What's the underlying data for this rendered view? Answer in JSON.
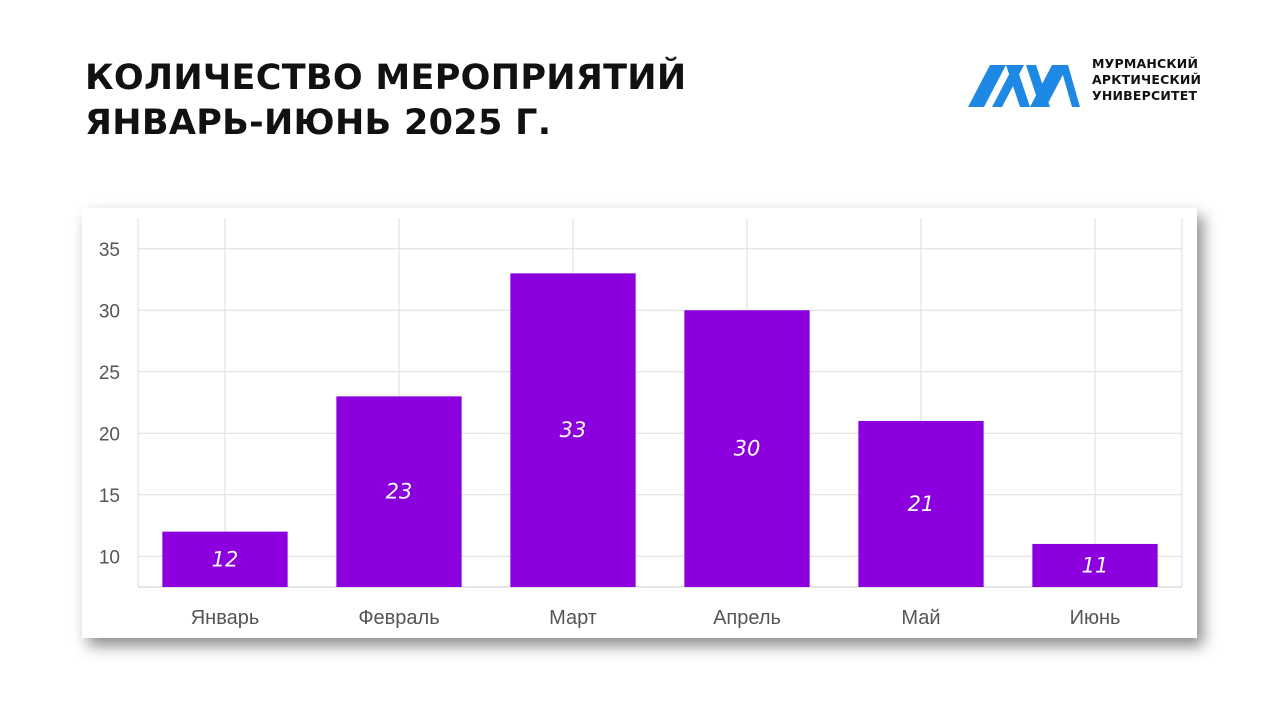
{
  "header": {
    "title_line1": "КОЛИЧЕСТВО МЕРОПРИЯТИЙ",
    "title_line2": "ЯНВАРЬ-ИЮНЬ 2025 Г."
  },
  "logo": {
    "line1": "МУРМАНСКИЙ",
    "line2": "АРКТИЧЕСКИЙ",
    "line3": "УНИВЕРСИТЕТ",
    "color": "#1E88E5"
  },
  "chart_data": {
    "type": "bar",
    "categories": [
      "Январь",
      "Февраль",
      "Март",
      "Апрель",
      "Май",
      "Июнь"
    ],
    "values": [
      12,
      23,
      33,
      30,
      21,
      11
    ],
    "data_labels": [
      "12",
      "23",
      "33",
      "30",
      "21",
      "11"
    ],
    "yticks": [
      10,
      15,
      20,
      25,
      30,
      35
    ],
    "ylim": [
      7.5,
      37.5
    ],
    "grid": true,
    "bar_color": "#8B00DD",
    "label_color": "#FFFFFF"
  }
}
